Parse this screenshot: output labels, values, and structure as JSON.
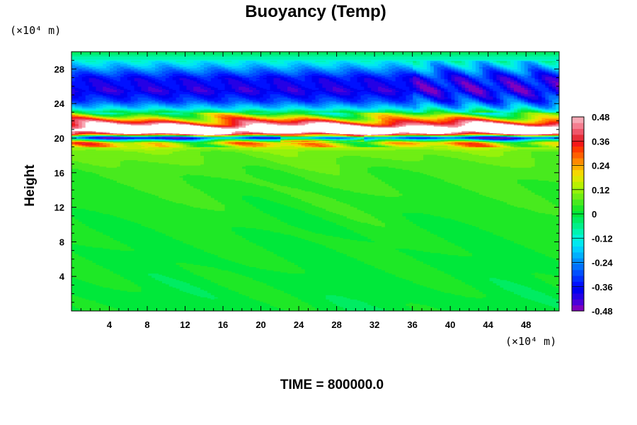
{
  "chart_data": {
    "type": "heatmap",
    "title": "Buoyancy (Temp)",
    "ylabel": "Height",
    "xlabel": "",
    "x_unit": "(×10⁴ m)",
    "y_unit": "(×10⁴ m)",
    "footer": "TIME = 800000.0",
    "xlim": [
      0,
      51.5
    ],
    "ylim": [
      0,
      30
    ],
    "x_ticks": [
      4,
      8,
      12,
      16,
      20,
      24,
      28,
      32,
      36,
      40,
      44,
      48
    ],
    "y_ticks": [
      4,
      8,
      12,
      16,
      20,
      24,
      28
    ],
    "x_tick_labels": [
      "4",
      "8",
      "12",
      "16",
      "20",
      "24",
      "28",
      "32",
      "36",
      "40",
      "44",
      "48"
    ],
    "y_tick_labels": [
      "4",
      "8",
      "12",
      "16",
      "20",
      "24",
      "28"
    ],
    "colorbar": {
      "ticks": [
        0.48,
        0.36,
        0.24,
        0.12,
        0,
        -0.12,
        -0.24,
        -0.36,
        -0.48
      ],
      "tick_labels": [
        "0.48",
        "0.36",
        "0.24",
        "0.12",
        "0",
        "-0.12",
        "-0.24",
        "-0.36",
        "-0.48"
      ],
      "range": [
        -0.48,
        0.48
      ],
      "levels": 33,
      "colors": [
        "#7f00bf",
        "#4b00d9",
        "#2400e6",
        "#0000f0",
        "#0010ff",
        "#0030ff",
        "#0050ff",
        "#0070ff",
        "#0090ff",
        "#00b0ff",
        "#00cfff",
        "#00e8f0",
        "#00f5d8",
        "#00f5b0",
        "#00f089",
        "#00ec62",
        "#00e83a",
        "#1ee826",
        "#48ea1e",
        "#6fee14",
        "#96f20a",
        "#b9f000",
        "#dce800",
        "#f5d800",
        "#ffb000",
        "#ff8800",
        "#ff6000",
        "#ff3a00",
        "#f51818",
        "#e82e3a",
        "#f0566a",
        "#f57e90",
        "#f7a8b4"
      ]
    },
    "profile": [
      {
        "y": 0,
        "v": 0.0
      },
      {
        "y": 10,
        "v": 0.02
      },
      {
        "y": 16,
        "v": 0.05
      },
      {
        "y": 18.5,
        "v": 0.09
      },
      {
        "y": 19.5,
        "v": 0.2
      },
      {
        "y": 20.1,
        "v": -0.38
      },
      {
        "y": 20.5,
        "v": 0.44
      },
      {
        "y": 21.0,
        "v": 0.7
      },
      {
        "y": 21.6,
        "v": 0.44
      },
      {
        "y": 22.2,
        "v": 0.24
      },
      {
        "y": 22.8,
        "v": 0.05
      },
      {
        "y": 23.5,
        "v": -0.16
      },
      {
        "y": 24.3,
        "v": -0.3
      },
      {
        "y": 25.5,
        "v": -0.4
      },
      {
        "y": 27.0,
        "v": -0.36
      },
      {
        "y": 28.3,
        "v": -0.2
      },
      {
        "y": 29.2,
        "v": -0.1
      },
      {
        "y": 30,
        "v": -0.02
      }
    ]
  }
}
